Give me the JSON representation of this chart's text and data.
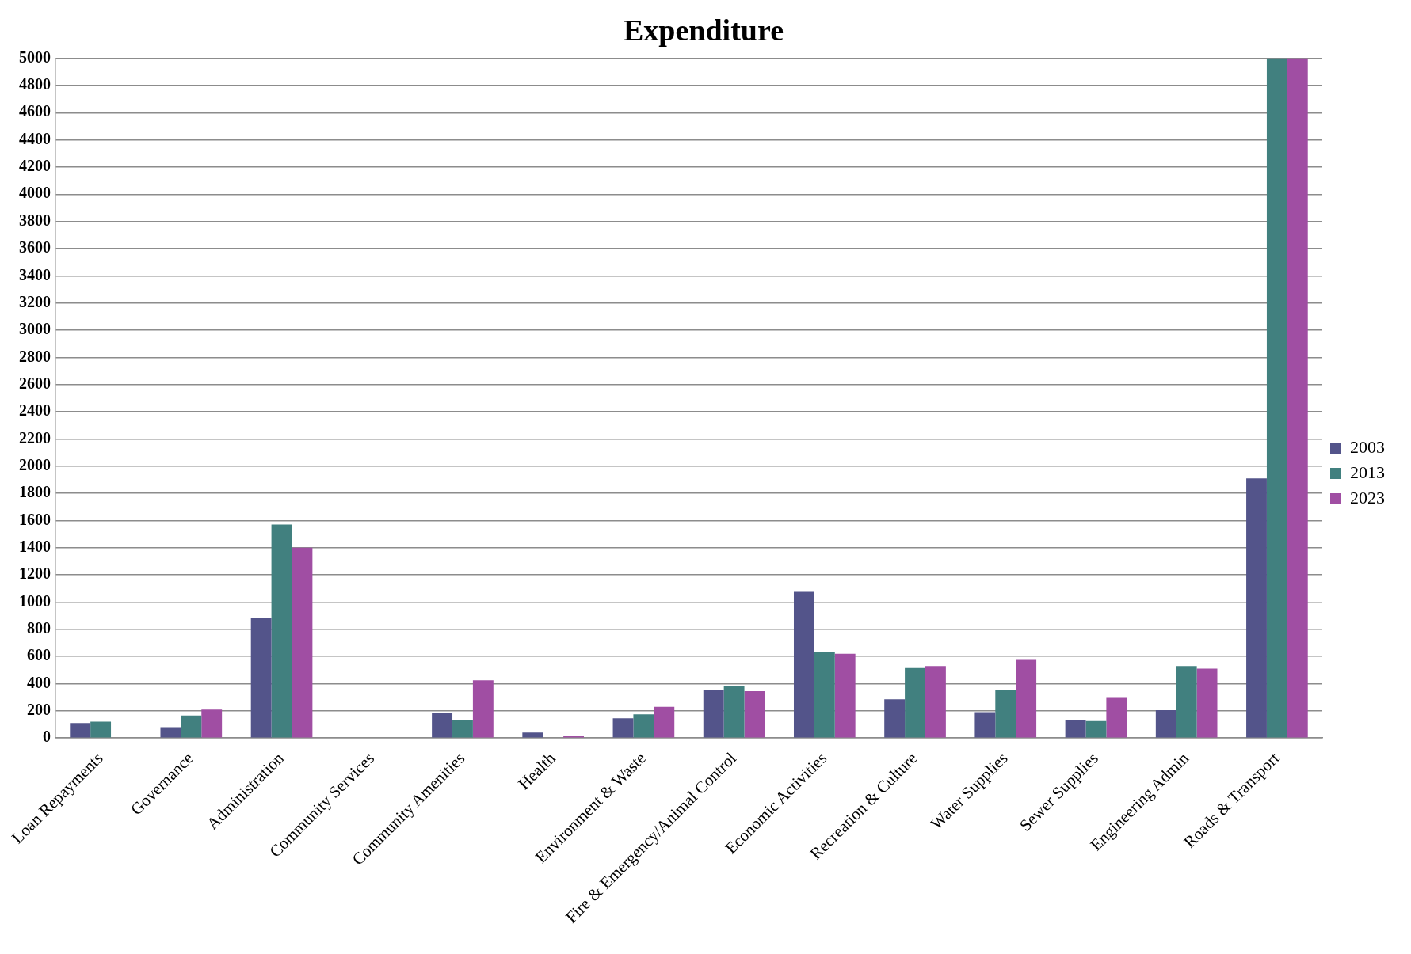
{
  "chart_data": {
    "type": "bar",
    "title": "Expenditure",
    "categories": [
      "Loan Repayments",
      "Governance",
      "Administration",
      "Community Services",
      "Community Amenities",
      "Health",
      "Environment & Waste",
      "Fire & Emergency/Animal Control",
      "Economic Activities",
      "Recreation & Culture",
      "Water Supplies",
      "Sewer Supplies",
      "Engineering Admin",
      "Roads & Transport"
    ],
    "series": [
      {
        "name": "2003",
        "color": "#53548a",
        "values": [
          110,
          80,
          880,
          null,
          185,
          40,
          145,
          355,
          1075,
          285,
          190,
          130,
          205,
          1910
        ]
      },
      {
        "name": "2013",
        "color": "#41807f",
        "values": [
          120,
          165,
          1570,
          null,
          130,
          null,
          175,
          385,
          630,
          515,
          355,
          125,
          530,
          5000
        ]
      },
      {
        "name": "2023",
        "color": "#a04ea3",
        "values": [
          null,
          210,
          1400,
          null,
          425,
          13,
          230,
          345,
          620,
          530,
          575,
          295,
          510,
          5000
        ]
      }
    ],
    "ylim": [
      0,
      5000
    ],
    "yticks": [
      0,
      200,
      400,
      600,
      800,
      1000,
      1200,
      1400,
      1600,
      1800,
      2000,
      2200,
      2400,
      2600,
      2800,
      3000,
      3200,
      3400,
      3600,
      3800,
      4000,
      4200,
      4400,
      4600,
      4800,
      5000
    ],
    "grid": "y",
    "legend": "right"
  }
}
